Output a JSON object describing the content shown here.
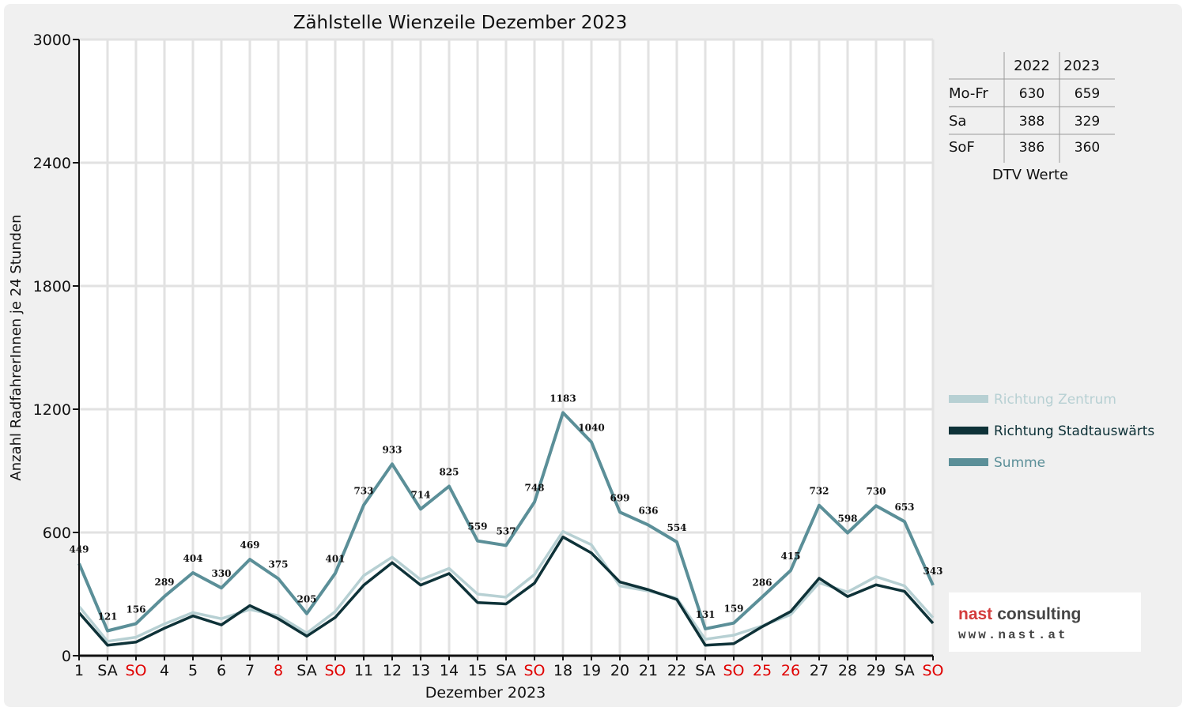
{
  "chart_data": {
    "type": "line",
    "title": "Zählstelle Wienzeile Dezember 2023",
    "xlabel": "Dezember 2023",
    "ylabel": "Anzahl RadfahrerInnen je 24 Stunden",
    "ylim": [
      0,
      3000
    ],
    "yticks": [
      "0",
      "600",
      "1200",
      "1800",
      "2400",
      "3000"
    ],
    "grid": true,
    "legend_position": "right",
    "categories": [
      "1",
      "SA",
      "SO",
      "4",
      "5",
      "6",
      "7",
      "8",
      "SA",
      "SO",
      "11",
      "12",
      "13",
      "14",
      "15",
      "SA",
      "SO",
      "18",
      "19",
      "20",
      "21",
      "22",
      "SA",
      "SO",
      "25",
      "26",
      "27",
      "28",
      "29",
      "SA",
      "SO"
    ],
    "holiday_flags": [
      false,
      false,
      true,
      false,
      false,
      false,
      false,
      true,
      false,
      true,
      false,
      false,
      false,
      false,
      false,
      false,
      true,
      false,
      false,
      false,
      false,
      false,
      false,
      true,
      true,
      true,
      false,
      false,
      false,
      false,
      true
    ],
    "series": [
      {
        "name": "Richtung Zentrum",
        "color": "#b7d0d3",
        "values": [
          240,
          70,
          90,
          155,
          210,
          180,
          225,
          195,
          110,
          215,
          390,
          480,
          370,
          425,
          300,
          285,
          395,
          605,
          540,
          340,
          315,
          280,
          80,
          100,
          145,
          200,
          355,
          310,
          385,
          340,
          185
        ]
      },
      {
        "name": "Richtung Stadtauswärts",
        "color": "#0e3238",
        "values": [
          209,
          51,
          66,
          134,
          194,
          150,
          244,
          180,
          95,
          186,
          343,
          453,
          344,
          400,
          259,
          252,
          353,
          578,
          500,
          359,
          321,
          274,
          51,
          59,
          141,
          215,
          377,
          288,
          345,
          313,
          158
        ]
      },
      {
        "name": "Summe",
        "color": "#5b8f98",
        "values": [
          449,
          121,
          156,
          289,
          404,
          330,
          469,
          375,
          205,
          401,
          733,
          933,
          714,
          825,
          559,
          537,
          748,
          1183,
          1040,
          699,
          636,
          554,
          131,
          159,
          286,
          415,
          732,
          598,
          730,
          653,
          343
        ]
      }
    ],
    "data_labels": [
      "449",
      "121",
      "156",
      "289",
      "404",
      "330",
      "469",
      "375",
      "205",
      "401",
      "733",
      "933",
      "714",
      "825",
      "559",
      "537",
      "748",
      "1183",
      "1040",
      "699",
      "636",
      "554",
      "131",
      "159",
      "286",
      "415",
      "732",
      "598",
      "730",
      "653",
      "343"
    ]
  },
  "dtv_table": {
    "caption": "DTV Werte",
    "headers": [
      "",
      "2022",
      "2023"
    ],
    "rows": [
      {
        "label": "Mo-Fr",
        "v2022": "630",
        "v2023": "659"
      },
      {
        "label": "Sa",
        "v2022": "388",
        "v2023": "329"
      },
      {
        "label": "SoF",
        "v2022": "386",
        "v2023": "360"
      }
    ]
  },
  "logo": {
    "name": "nast consulting",
    "url_text": "www.nast.at",
    "color": "#d33b3b"
  },
  "colors": {
    "frame": "#f0f0f0",
    "plot_bg": "#ffffff",
    "grid": "#e2e2e2",
    "axis": "#111111",
    "holiday": "#e00000"
  }
}
